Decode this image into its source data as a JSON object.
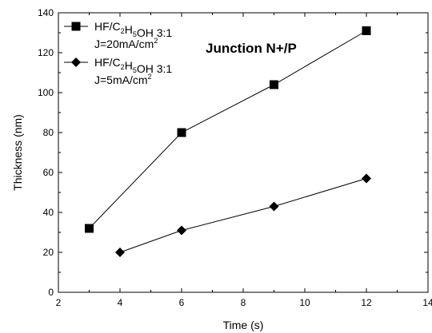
{
  "chart_data": {
    "type": "line",
    "title": "",
    "annotation": "Junction N+/P",
    "xlabel": "Time (s)",
    "ylabel": "Thickness (nm)",
    "xlim": [
      2,
      14
    ],
    "ylim": [
      0,
      140
    ],
    "xticks": [
      2,
      4,
      6,
      8,
      10,
      12,
      14
    ],
    "yticks": [
      0,
      20,
      40,
      60,
      80,
      100,
      120,
      140
    ],
    "grid": false,
    "legend_position": "top-left",
    "series": [
      {
        "name": "HF/C2H5OH 3:1 J=20mA/cm2",
        "legend_line1": [
          "HF/C",
          "2",
          "H",
          "5",
          "OH  3:1"
        ],
        "legend_line2": [
          "J=20mA/cm",
          "2"
        ],
        "marker": "square",
        "x": [
          3,
          6,
          9,
          12
        ],
        "y": [
          32,
          80,
          104,
          131
        ]
      },
      {
        "name": "HF/C2H5OH 3:1 J=5mA/cm2",
        "legend_line1": [
          "HF/C",
          "2",
          "H",
          "5",
          "OH  3:1"
        ],
        "legend_line2": [
          "J=5mA/cm",
          "2"
        ],
        "marker": "diamond",
        "x": [
          4,
          6,
          9,
          12
        ],
        "y": [
          20,
          31,
          43,
          57
        ]
      }
    ],
    "colors": {
      "line": "#000000",
      "marker": "#000000"
    }
  }
}
